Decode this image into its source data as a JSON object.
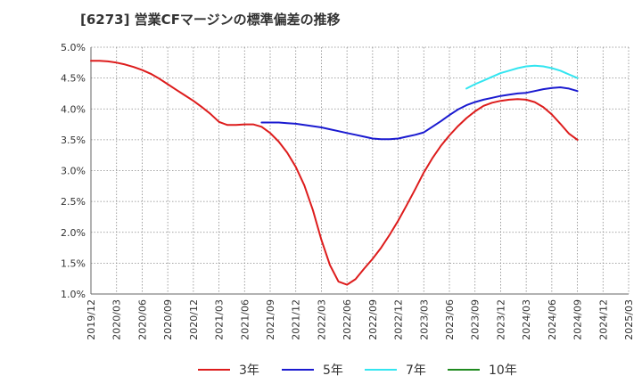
{
  "title": "[6273]  営業CFマージンの標準偏差の推移",
  "chart_data": {
    "type": "line",
    "x": [
      "2019/12",
      "2020/03",
      "2020/06",
      "2020/09",
      "2020/12",
      "2021/03",
      "2021/06",
      "2021/09",
      "2021/12",
      "2022/03",
      "2022/06",
      "2022/09",
      "2022/12",
      "2023/03",
      "2023/06",
      "2023/09",
      "2023/12",
      "2024/03",
      "2024/06",
      "2024/09",
      "2024/12",
      "2025/03"
    ],
    "y_ticks": [
      "1.0%",
      "1.5%",
      "2.0%",
      "2.5%",
      "3.0%",
      "3.5%",
      "4.0%",
      "4.5%",
      "5.0%"
    ],
    "ylim": [
      1.0,
      5.0
    ],
    "grid": true,
    "legend_position": "bottom",
    "series": [
      {
        "name": "3年",
        "color": "#dd1c1c",
        "points": [
          [
            "2019/12",
            4.78
          ],
          [
            "2020/01",
            4.78
          ],
          [
            "2020/02",
            4.77
          ],
          [
            "2020/03",
            4.75
          ],
          [
            "2020/04",
            4.72
          ],
          [
            "2020/05",
            4.68
          ],
          [
            "2020/06",
            4.63
          ],
          [
            "2020/07",
            4.57
          ],
          [
            "2020/08",
            4.49
          ],
          [
            "2020/09",
            4.4
          ],
          [
            "2020/10",
            4.31
          ],
          [
            "2020/11",
            4.22
          ],
          [
            "2020/12",
            4.13
          ],
          [
            "2021/01",
            4.03
          ],
          [
            "2021/02",
            3.92
          ],
          [
            "2021/03",
            3.79
          ],
          [
            "2021/04",
            3.74
          ],
          [
            "2021/05",
            3.74
          ],
          [
            "2021/06",
            3.75
          ],
          [
            "2021/07",
            3.75
          ],
          [
            "2021/08",
            3.71
          ],
          [
            "2021/09",
            3.61
          ],
          [
            "2021/10",
            3.47
          ],
          [
            "2021/11",
            3.29
          ],
          [
            "2021/12",
            3.06
          ],
          [
            "2022/01",
            2.76
          ],
          [
            "2022/02",
            2.36
          ],
          [
            "2022/03",
            1.88
          ],
          [
            "2022/04",
            1.47
          ],
          [
            "2022/05",
            1.2
          ],
          [
            "2022/06",
            1.15
          ],
          [
            "2022/07",
            1.24
          ],
          [
            "2022/08",
            1.41
          ],
          [
            "2022/09",
            1.57
          ],
          [
            "2022/10",
            1.75
          ],
          [
            "2022/11",
            1.96
          ],
          [
            "2022/12",
            2.19
          ],
          [
            "2023/01",
            2.44
          ],
          [
            "2023/02",
            2.7
          ],
          [
            "2023/03",
            2.97
          ],
          [
            "2023/04",
            3.2
          ],
          [
            "2023/05",
            3.4
          ],
          [
            "2023/06",
            3.57
          ],
          [
            "2023/07",
            3.72
          ],
          [
            "2023/08",
            3.85
          ],
          [
            "2023/09",
            3.96
          ],
          [
            "2023/10",
            4.05
          ],
          [
            "2023/11",
            4.1
          ],
          [
            "2023/12",
            4.13
          ],
          [
            "2024/01",
            4.15
          ],
          [
            "2024/02",
            4.16
          ],
          [
            "2024/03",
            4.15
          ],
          [
            "2024/04",
            4.11
          ],
          [
            "2024/05",
            4.03
          ],
          [
            "2024/06",
            3.91
          ],
          [
            "2024/07",
            3.76
          ],
          [
            "2024/08",
            3.6
          ],
          [
            "2024/09",
            3.5
          ]
        ]
      },
      {
        "name": "5年",
        "color": "#1a1ad0",
        "points": [
          [
            "2021/08",
            3.78
          ],
          [
            "2021/09",
            3.78
          ],
          [
            "2021/10",
            3.78
          ],
          [
            "2021/11",
            3.77
          ],
          [
            "2021/12",
            3.76
          ],
          [
            "2022/01",
            3.74
          ],
          [
            "2022/02",
            3.72
          ],
          [
            "2022/03",
            3.7
          ],
          [
            "2022/04",
            3.67
          ],
          [
            "2022/05",
            3.64
          ],
          [
            "2022/06",
            3.61
          ],
          [
            "2022/07",
            3.58
          ],
          [
            "2022/08",
            3.55
          ],
          [
            "2022/09",
            3.52
          ],
          [
            "2022/10",
            3.51
          ],
          [
            "2022/11",
            3.51
          ],
          [
            "2022/12",
            3.52
          ],
          [
            "2023/01",
            3.55
          ],
          [
            "2023/02",
            3.58
          ],
          [
            "2023/03",
            3.62
          ],
          [
            "2023/04",
            3.71
          ],
          [
            "2023/05",
            3.8
          ],
          [
            "2023/06",
            3.9
          ],
          [
            "2023/07",
            3.99
          ],
          [
            "2023/08",
            4.06
          ],
          [
            "2023/09",
            4.11
          ],
          [
            "2023/10",
            4.15
          ],
          [
            "2023/11",
            4.18
          ],
          [
            "2023/12",
            4.21
          ],
          [
            "2024/01",
            4.23
          ],
          [
            "2024/02",
            4.25
          ],
          [
            "2024/03",
            4.26
          ],
          [
            "2024/04",
            4.29
          ],
          [
            "2024/05",
            4.32
          ],
          [
            "2024/06",
            4.34
          ],
          [
            "2024/07",
            4.35
          ],
          [
            "2024/08",
            4.33
          ],
          [
            "2024/09",
            4.29
          ]
        ]
      },
      {
        "name": "7年",
        "color": "#33e5f0",
        "points": [
          [
            "2023/08",
            4.33
          ],
          [
            "2023/09",
            4.4
          ],
          [
            "2023/10",
            4.46
          ],
          [
            "2023/11",
            4.52
          ],
          [
            "2023/12",
            4.58
          ],
          [
            "2024/01",
            4.62
          ],
          [
            "2024/02",
            4.66
          ],
          [
            "2024/03",
            4.69
          ],
          [
            "2024/04",
            4.7
          ],
          [
            "2024/05",
            4.69
          ],
          [
            "2024/06",
            4.66
          ],
          [
            "2024/07",
            4.62
          ],
          [
            "2024/08",
            4.56
          ],
          [
            "2024/09",
            4.5
          ]
        ]
      },
      {
        "name": "10年",
        "color": "#1f8a1f",
        "points": []
      }
    ]
  }
}
